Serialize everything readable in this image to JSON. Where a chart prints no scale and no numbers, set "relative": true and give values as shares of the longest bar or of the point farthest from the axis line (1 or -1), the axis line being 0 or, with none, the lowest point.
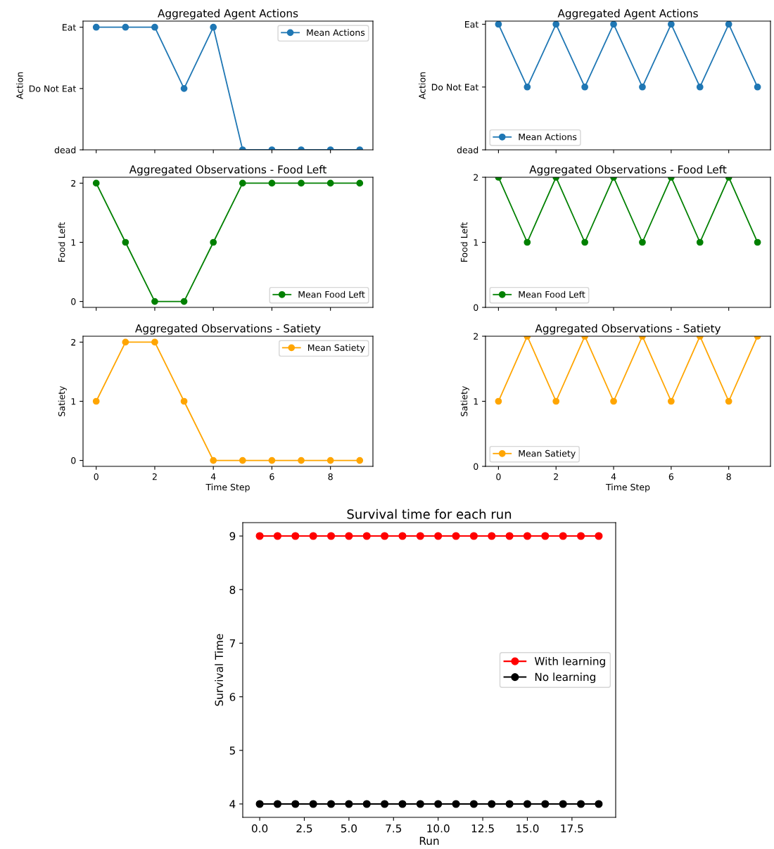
{
  "chart_data": [
    {
      "type": "line",
      "title": "Aggregated Agent Actions",
      "ylabel": "Action",
      "x": [
        0,
        1,
        2,
        3,
        4,
        5,
        6,
        7,
        8,
        9
      ],
      "xlim": [
        -0.45,
        9.45
      ],
      "xticks": [
        0,
        2,
        4,
        6,
        8
      ],
      "relative": true,
      "annotations": [
        "dead",
        "Do Not Eat",
        "Eat"
      ],
      "tick_labels": "y",
      "marker": "circle",
      "legend": "top right",
      "grid": false,
      "series": [
        {
          "name": "Mean Actions",
          "color": "#1f77b4",
          "values": [
            1,
            1,
            1,
            0.5,
            1,
            0,
            0,
            0,
            0,
            0
          ]
        }
      ]
    },
    {
      "type": "line",
      "title": "Aggregated Agent Actions",
      "ylabel": "Action",
      "x": [
        0,
        1,
        2,
        3,
        4,
        5,
        6,
        7,
        8,
        9
      ],
      "xlim": [
        -0.45,
        9.45
      ],
      "xticks": [
        0,
        2,
        4,
        6,
        8
      ],
      "relative": true,
      "annotations": [
        "dead",
        "Do Not Eat",
        "Eat"
      ],
      "tick_labels": "y",
      "marker": "circle",
      "legend": "bottom left",
      "grid": false,
      "series": [
        {
          "name": "Mean Actions",
          "color": "#1f77b4",
          "values": [
            1,
            0.5,
            1,
            0.5,
            1,
            0.5,
            1,
            0.5,
            1,
            0.5
          ]
        }
      ]
    },
    {
      "type": "line",
      "title": "Aggregated Observations - Food Left",
      "ylabel": "Food Left",
      "x": [
        0,
        1,
        2,
        3,
        4,
        5,
        6,
        7,
        8,
        9
      ],
      "xlim": [
        -0.45,
        9.45
      ],
      "xticks": [
        0,
        2,
        4,
        6,
        8
      ],
      "ylim": [
        -0.1,
        2.1
      ],
      "yticks": [
        0,
        1,
        2
      ],
      "tick_labels": "y",
      "marker": "circle",
      "legend": "bottom right",
      "grid": false,
      "series": [
        {
          "name": "Mean Food Left",
          "color": "#008000",
          "values": [
            2,
            1,
            0,
            0,
            1,
            2,
            2,
            2,
            2,
            2
          ]
        }
      ]
    },
    {
      "type": "line",
      "title": "Aggregated Observations - Food Left",
      "ylabel": "Food Left",
      "x": [
        0,
        1,
        2,
        3,
        4,
        5,
        6,
        7,
        8,
        9
      ],
      "xlim": [
        -0.45,
        9.45
      ],
      "xticks": [
        0,
        2,
        4,
        6,
        8
      ],
      "ylim": [
        0,
        2
      ],
      "yticks": [
        0,
        1,
        2
      ],
      "tick_labels": "y",
      "marker": "circle",
      "legend": "bottom left",
      "grid": false,
      "series": [
        {
          "name": "Mean Food Left",
          "color": "#008000",
          "values": [
            2,
            1,
            2,
            1,
            2,
            1,
            2,
            1,
            2,
            1
          ]
        }
      ]
    },
    {
      "type": "line",
      "title": "Aggregated Observations - Satiety",
      "ylabel": "Satiety",
      "xlabel": "Time Step",
      "x": [
        0,
        1,
        2,
        3,
        4,
        5,
        6,
        7,
        8,
        9
      ],
      "xlim": [
        -0.45,
        9.45
      ],
      "xticks": [
        0,
        2,
        4,
        6,
        8
      ],
      "ylim": [
        -0.1,
        2.1
      ],
      "yticks": [
        0,
        1,
        2
      ],
      "marker": "circle",
      "legend": "top right",
      "grid": false,
      "series": [
        {
          "name": "Mean Satiety",
          "color": "#ffa500",
          "values": [
            1,
            2,
            2,
            1,
            0,
            0,
            0,
            0,
            0,
            0
          ]
        }
      ]
    },
    {
      "type": "line",
      "title": "Aggregated Observations - Satiety",
      "ylabel": "Satiety",
      "xlabel": "Time Step",
      "x": [
        0,
        1,
        2,
        3,
        4,
        5,
        6,
        7,
        8,
        9
      ],
      "xlim": [
        -0.45,
        9.45
      ],
      "xticks": [
        0,
        2,
        4,
        6,
        8
      ],
      "ylim": [
        0,
        2
      ],
      "yticks": [
        0,
        1,
        2
      ],
      "marker": "circle",
      "legend": "bottom left",
      "grid": false,
      "series": [
        {
          "name": "Mean Satiety",
          "color": "#ffa500",
          "values": [
            1,
            2,
            1,
            2,
            1,
            2,
            1,
            2,
            1,
            2
          ]
        }
      ]
    },
    {
      "type": "line",
      "title": "Survival time for each run",
      "xlabel": "Run",
      "ylabel": "Survival Time",
      "x": [
        0,
        1,
        2,
        3,
        4,
        5,
        6,
        7,
        8,
        9,
        10,
        11,
        12,
        13,
        14,
        15,
        16,
        17,
        18,
        19
      ],
      "xlim": [
        -0.95,
        19.95
      ],
      "xticks": [
        {
          "value": 0,
          "label": "0.0"
        },
        {
          "value": 2.5,
          "label": "2.5"
        },
        {
          "value": 5,
          "label": "5.0"
        },
        {
          "value": 7.5,
          "label": "7.5"
        },
        {
          "value": 10,
          "label": "10.0"
        },
        {
          "value": 12.5,
          "label": "12.5"
        },
        {
          "value": 15,
          "label": "15.0"
        },
        {
          "value": 17.5,
          "label": "17.5"
        }
      ],
      "ylim": [
        3.75,
        9.25
      ],
      "yticks": [
        4,
        5,
        6,
        7,
        8,
        9
      ],
      "marker": "circle",
      "legend": "right",
      "grid": false,
      "series": [
        {
          "name": "With learning",
          "color": "#ff0000",
          "values": [
            9,
            9,
            9,
            9,
            9,
            9,
            9,
            9,
            9,
            9,
            9,
            9,
            9,
            9,
            9,
            9,
            9,
            9,
            9,
            9
          ]
        },
        {
          "name": "No learning",
          "color": "#000000",
          "values": [
            4,
            4,
            4,
            4,
            4,
            4,
            4,
            4,
            4,
            4,
            4,
            4,
            4,
            4,
            4,
            4,
            4,
            4,
            4,
            4
          ]
        }
      ]
    }
  ]
}
